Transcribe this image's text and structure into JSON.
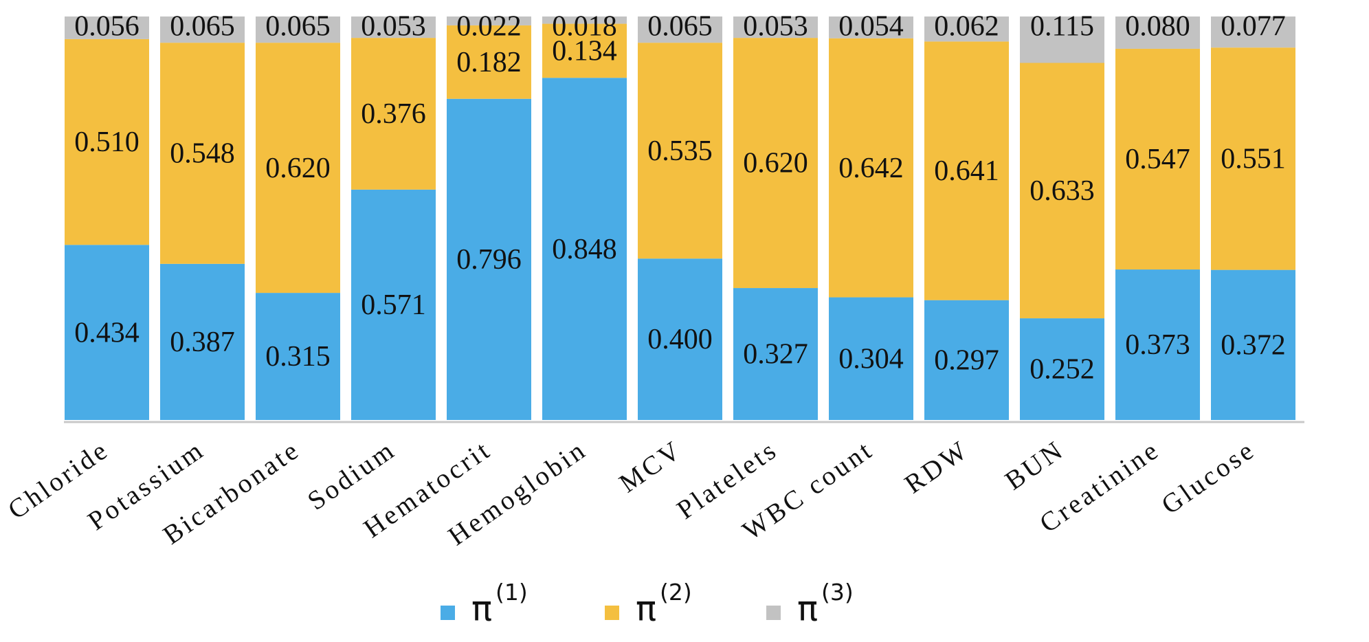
{
  "chart_data": {
    "type": "bar",
    "stacked": true,
    "normalized": true,
    "categories": [
      "Chloride",
      "Potassium",
      "Bicarbonate",
      "Sodium",
      "Hematocrit",
      "Hemoglobin",
      "MCV",
      "Platelets",
      "WBC count",
      "RDW",
      "BUN",
      "Creatinine",
      "Glucose"
    ],
    "series": [
      {
        "legend_symbol": "π",
        "legend_sup": "(1)",
        "color": "#4aace6",
        "values": [
          0.434,
          0.387,
          0.315,
          0.571,
          0.796,
          0.848,
          0.4,
          0.327,
          0.304,
          0.297,
          0.252,
          0.373,
          0.372
        ],
        "labels": [
          "0.434",
          "0.387",
          "0.315",
          "0.571",
          "0.796",
          "0.848",
          "0.400",
          "0.327",
          "0.304",
          "0.297",
          "0.252",
          "0.373",
          "0.372"
        ]
      },
      {
        "legend_symbol": "π",
        "legend_sup": "(2)",
        "color": "#f4bf40",
        "values": [
          0.51,
          0.548,
          0.62,
          0.376,
          0.182,
          0.134,
          0.535,
          0.62,
          0.642,
          0.641,
          0.633,
          0.547,
          0.551
        ],
        "labels": [
          "0.510",
          "0.548",
          "0.620",
          "0.376",
          "0.182",
          "0.134",
          "0.535",
          "0.620",
          "0.642",
          "0.641",
          "0.633",
          "0.547",
          "0.551"
        ]
      },
      {
        "legend_symbol": "π",
        "legend_sup": "(3)",
        "color": "#c2c2c2",
        "values": [
          0.056,
          0.065,
          0.065,
          0.053,
          0.022,
          0.018,
          0.065,
          0.053,
          0.054,
          0.062,
          0.115,
          0.08,
          0.077
        ],
        "labels": [
          "0.056",
          "0.065",
          "0.065",
          "0.053",
          "0.022",
          "0.018",
          "0.065",
          "0.053",
          "0.054",
          "0.062",
          "0.115",
          "0.080",
          "0.077"
        ]
      }
    ],
    "ylim": [
      0,
      1
    ],
    "grid": false,
    "legend_position": "bottom"
  }
}
